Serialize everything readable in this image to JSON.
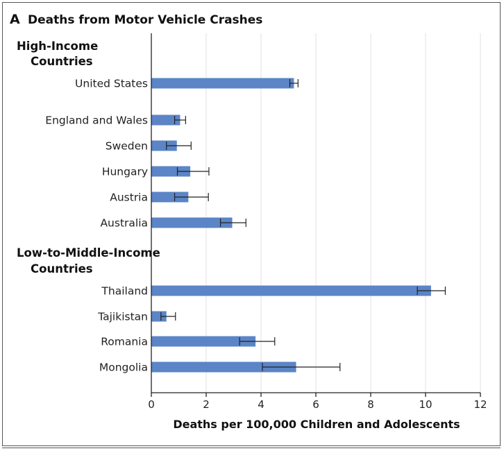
{
  "chart_data": {
    "type": "bar",
    "orientation": "horizontal",
    "panel": "A",
    "title": "Deaths from Motor Vehicle Crashes",
    "xlabel": "Deaths per 100,000 Children and Adolescents",
    "xlim": [
      0,
      12
    ],
    "xticks": [
      0,
      2,
      4,
      6,
      8,
      10,
      12
    ],
    "grid": "vertical",
    "bar_color": "#5b85c6",
    "groups": [
      {
        "label_lines": [
          "High-Income",
          "Countries"
        ],
        "items": [
          {
            "label": "United States",
            "value": 5.2,
            "ci": [
              5.05,
              5.35
            ]
          },
          {
            "label": "England and Wales",
            "value": 1.05,
            "ci": [
              0.85,
              1.25
            ]
          },
          {
            "label": "Sweden",
            "value": 0.93,
            "ci": [
              0.55,
              1.45
            ]
          },
          {
            "label": "Hungary",
            "value": 1.42,
            "ci": [
              0.95,
              2.1
            ]
          },
          {
            "label": "Austria",
            "value": 1.35,
            "ci": [
              0.85,
              2.08
            ]
          },
          {
            "label": "Australia",
            "value": 2.95,
            "ci": [
              2.52,
              3.45
            ]
          }
        ]
      },
      {
        "label_lines": [
          "Low-to-Middle-Income",
          "Countries"
        ],
        "items": [
          {
            "label": "Thailand",
            "value": 10.2,
            "ci": [
              9.7,
              10.72
            ]
          },
          {
            "label": "Tajikistan",
            "value": 0.55,
            "ci": [
              0.35,
              0.88
            ]
          },
          {
            "label": "Romania",
            "value": 3.8,
            "ci": [
              3.22,
              4.5
            ]
          },
          {
            "label": "Mongolia",
            "value": 5.28,
            "ci": [
              4.05,
              6.88
            ]
          }
        ]
      }
    ]
  }
}
